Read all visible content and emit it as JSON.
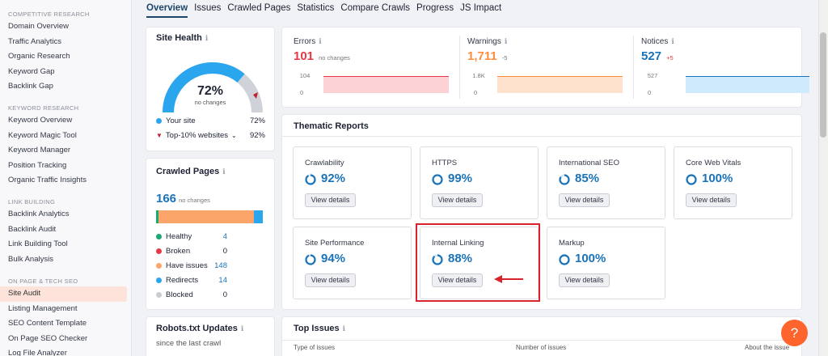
{
  "sidebar": {
    "sections": [
      {
        "title": "COMPETITIVE RESEARCH",
        "items": [
          "Domain Overview",
          "Traffic Analytics",
          "Organic Research",
          "Keyword Gap",
          "Backlink Gap"
        ]
      },
      {
        "title": "KEYWORD RESEARCH",
        "items": [
          "Keyword Overview",
          "Keyword Magic Tool",
          "Keyword Manager",
          "Position Tracking",
          "Organic Traffic Insights"
        ]
      },
      {
        "title": "LINK BUILDING",
        "items": [
          "Backlink Analytics",
          "Backlink Audit",
          "Link Building Tool",
          "Bulk Analysis"
        ]
      },
      {
        "title": "ON PAGE & TECH SEO",
        "items": [
          "Site Audit",
          "Listing Management",
          "SEO Content Template",
          "On Page SEO Checker",
          "Log File Analyzer"
        ]
      }
    ],
    "active_item": "Site Audit"
  },
  "tabs": [
    "Overview",
    "Issues",
    "Crawled Pages",
    "Statistics",
    "Compare Crawls",
    "Progress",
    "JS Impact"
  ],
  "site_health": {
    "title": "Site Health",
    "value": "72%",
    "subtitle": "no changes",
    "gauge_fraction": 0.72,
    "legend": [
      {
        "label": "Your site",
        "value": "72%"
      },
      {
        "label": "Top-10% websites",
        "value": "92%"
      }
    ]
  },
  "crawled_pages": {
    "title": "Crawled Pages",
    "count": "166",
    "count_note": "no changes",
    "rows": [
      {
        "label": "Healthy",
        "value": "4"
      },
      {
        "label": "Broken",
        "value": "0"
      },
      {
        "label": "Have issues",
        "value": "148"
      },
      {
        "label": "Redirects",
        "value": "14"
      },
      {
        "label": "Blocked",
        "value": "0"
      }
    ]
  },
  "robots": {
    "title": "Robots.txt Updates",
    "subtitle": "since the last crawl"
  },
  "metrics": [
    {
      "label": "Errors",
      "value": "101",
      "delta": "no changes",
      "ymax": "104",
      "ymin": "0"
    },
    {
      "label": "Warnings",
      "value": "1,711",
      "delta": "-5",
      "ymax": "1.8K",
      "ymin": "0"
    },
    {
      "label": "Notices",
      "value": "527",
      "delta": "+5",
      "ymax": "527",
      "ymin": "0"
    }
  ],
  "thematic": {
    "title": "Thematic Reports",
    "button_label": "View details",
    "reports": [
      {
        "name": "Crawlability",
        "pct": "92%",
        "frac": 0.92
      },
      {
        "name": "HTTPS",
        "pct": "99%",
        "frac": 0.99
      },
      {
        "name": "International SEO",
        "pct": "85%",
        "frac": 0.85
      },
      {
        "name": "Core Web Vitals",
        "pct": "100%",
        "frac": 1.0
      },
      {
        "name": "Site Performance",
        "pct": "94%",
        "frac": 0.94
      },
      {
        "name": "Internal Linking",
        "pct": "88%",
        "frac": 0.88
      },
      {
        "name": "Markup",
        "pct": "100%",
        "frac": 1.0
      }
    ]
  },
  "top_issues": {
    "title": "Top Issues",
    "columns": [
      "Type of issues",
      "Number of issues",
      "About the issue"
    ]
  },
  "help_label": "?",
  "colors": {
    "accent": "#1a73b8",
    "error": "#e53946",
    "warning": "#ff8c3b",
    "notice": "#1a73b8",
    "orange": "#ff642d"
  }
}
